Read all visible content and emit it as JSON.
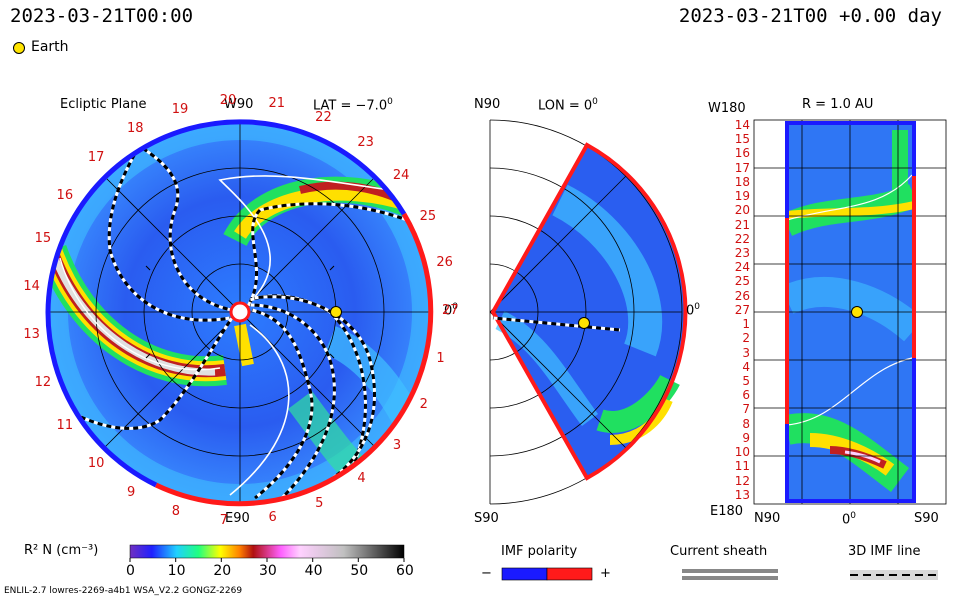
{
  "header": {
    "timestamp_left": "2023-03-21T00:00",
    "timestamp_right": "2023-03-21T00 +0.00 day"
  },
  "legend": {
    "earth_label": "Earth",
    "earth_color": "#ffe400"
  },
  "panel_ecliptic": {
    "title": "Ecliptic Plane",
    "lat_label": "LAT = −7.0",
    "w90_label": "W90",
    "e90_label": "E90",
    "zero_label": "0",
    "ring_labels": [
      "1",
      "2",
      "3",
      "4",
      "5",
      "6",
      "7",
      "8",
      "9",
      "10",
      "11",
      "12",
      "13",
      "14",
      "15",
      "16",
      "17",
      "18",
      "19",
      "20",
      "21",
      "22",
      "23",
      "24",
      "25",
      "26",
      "27"
    ]
  },
  "panel_meridional": {
    "n90_label": "N90",
    "s90_label": "S90",
    "lon_label": "LON = 0",
    "zero_label": "0"
  },
  "panel_sphere": {
    "w180_label": "W180",
    "e180_label": "E180",
    "r_label": "R = 1.0 AU",
    "n90_label": "N90",
    "zero_label": "0",
    "s90_label": "S90",
    "row_labels": [
      "14",
      "15",
      "16",
      "17",
      "18",
      "19",
      "20",
      "21",
      "22",
      "23",
      "24",
      "25",
      "26",
      "27",
      "1",
      "2",
      "3",
      "4",
      "5",
      "6",
      "7",
      "8",
      "9",
      "10",
      "11",
      "12",
      "13"
    ]
  },
  "colorbar": {
    "label": "R² N (cm⁻³)",
    "ticks": [
      "0",
      "10",
      "20",
      "30",
      "40",
      "50",
      "60"
    ]
  },
  "imf": {
    "title": "IMF polarity",
    "minus": "−",
    "plus": "+",
    "neg_color": "#1a1aff",
    "pos_color": "#ff1a1a"
  },
  "sheath": {
    "title": "Current sheath"
  },
  "imf3d": {
    "title": "3D IMF line"
  },
  "footer": {
    "left": "ENLIL-2.7 lowres-2269-a4b1 WSA_V2.2 GONGZ-2269"
  }
}
